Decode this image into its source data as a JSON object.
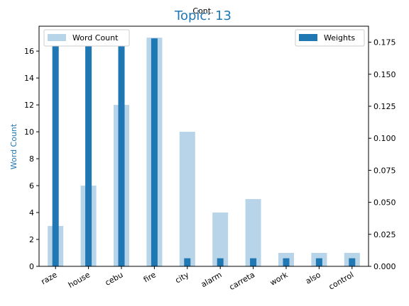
{
  "chart_data": {
    "type": "bar",
    "title": "Topic: 13",
    "top_label": "Cont.",
    "categories": [
      "raze",
      "house",
      "cebu",
      "fire",
      "city",
      "alarm",
      "carreta",
      "work",
      "also",
      "control"
    ],
    "ylabel_left": "Word Count",
    "ylim_left": [
      0,
      17.85
    ],
    "yticks_left": [
      "0",
      "2",
      "4",
      "6",
      "8",
      "10",
      "12",
      "14",
      "16"
    ],
    "ylim_right": [
      0,
      0.1875
    ],
    "yticks_right": [
      "0.000",
      "0.025",
      "0.050",
      "0.075",
      "0.100",
      "0.125",
      "0.150",
      "0.175"
    ],
    "series": [
      {
        "name": "Word Count",
        "axis": "left",
        "color": "#b8d4e8",
        "values": [
          3,
          6,
          12,
          17,
          10,
          4,
          5,
          1,
          1,
          1
        ]
      },
      {
        "name": "Weights",
        "axis": "right",
        "color": "#1f77b4",
        "values": [
          0.178,
          0.178,
          0.178,
          0.178,
          0.0063,
          0.0063,
          0.0063,
          0.0063,
          0.0063,
          0.0063
        ]
      }
    ],
    "title_color": "#1f77b4",
    "ylabel_color": "#1f77b4",
    "legend_left_placement": "upper-left",
    "legend_right_placement": "upper-right",
    "grid": false
  }
}
